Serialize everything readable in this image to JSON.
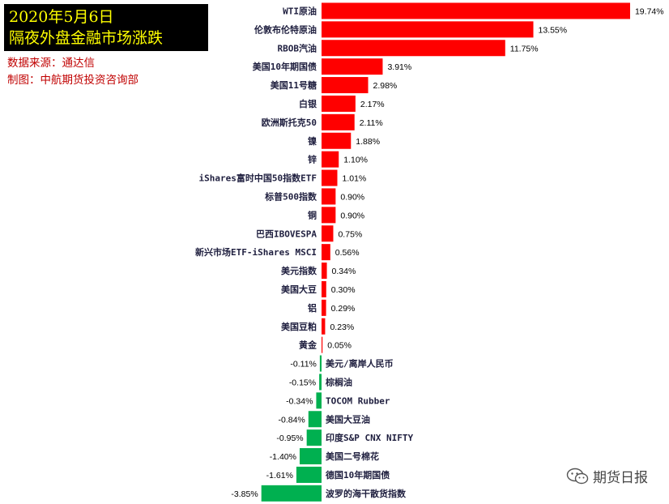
{
  "title": {
    "line1": "2020年5月6日",
    "line2": "隔夜外盘金融市场涨跌"
  },
  "source": {
    "line1": "数据来源：通达信",
    "line2": "制图：中航期货投资咨询部"
  },
  "watermark": {
    "icon": "wechat-icon",
    "text": "期货日报"
  },
  "colors": {
    "positive": "#ff0000",
    "negative": "#00b050",
    "title_bg": "#000000",
    "title_text": "#ffff00",
    "source_text": "#c00000"
  },
  "chart_data": {
    "type": "bar",
    "orientation": "horizontal",
    "title": "隔夜外盘金融市场涨跌",
    "xlabel": "",
    "ylabel": "",
    "unit": "%",
    "grid": false,
    "legend": "none",
    "categories": [
      "WTI原油",
      "伦敦布伦特原油",
      "RBOB汽油",
      "美国10年期国债",
      "美国11号糖",
      "白银",
      "欧洲斯托克50",
      "镍",
      "锌",
      "iShares富时中国50指数ETF",
      "标普500指数",
      "铜",
      "巴西IBOVESPA",
      "新兴市场ETF-iShares MSCI",
      "美元指数",
      "美国大豆",
      "铝",
      "美国豆粕",
      "黄金",
      "美元/离岸人民币",
      "棕榈油",
      "TOCOM Rubber",
      "美国大豆油",
      "印度S&P CNX NIFTY",
      "美国二号棉花",
      "德国10年期国债",
      "波罗的海干散货指数"
    ],
    "values": [
      19.74,
      13.55,
      11.75,
      3.91,
      2.98,
      2.17,
      2.11,
      1.88,
      1.1,
      1.01,
      0.9,
      0.9,
      0.75,
      0.56,
      0.34,
      0.3,
      0.29,
      0.23,
      0.05,
      -0.11,
      -0.15,
      -0.34,
      -0.84,
      -0.95,
      -1.4,
      -1.61,
      -3.85
    ],
    "value_labels": [
      "19.74%",
      "13.55%",
      "11.75%",
      "3.91%",
      "2.98%",
      "2.17%",
      "2.11%",
      "1.88%",
      "1.10%",
      "1.01%",
      "0.90%",
      "0.90%",
      "0.75%",
      "0.56%",
      "0.34%",
      "0.30%",
      "0.29%",
      "0.23%",
      "0.05%",
      "-0.11%",
      "-0.15%",
      "-0.34%",
      "-0.84%",
      "-0.95%",
      "-1.40%",
      "-1.61%",
      "-3.85%"
    ]
  }
}
